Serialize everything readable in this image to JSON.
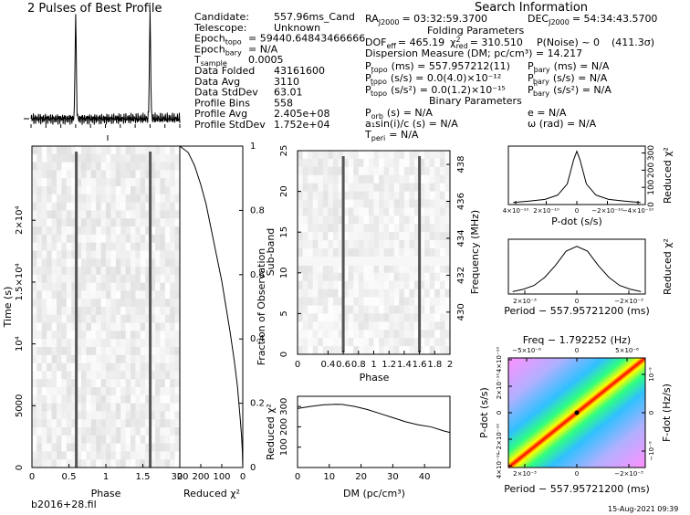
{
  "title_profile": "2 Pulses of Best Profile",
  "title_search": "Search Information",
  "filename": "b2016+28.fil",
  "timestamp": "15-Aug-2021 09:39",
  "info_left": [
    {
      "k": "Candidate:",
      "v": "557.96ms_Cand"
    },
    {
      "k": "Telescope:",
      "v": "Unknown"
    },
    {
      "k": "Epoch",
      "sub": "topo",
      "v": "= 59440.64843466666"
    },
    {
      "k": "Epoch",
      "sub": "bary",
      "v": "= N/A"
    },
    {
      "k": "T",
      "sub": "sample",
      "v": "0.0005"
    },
    {
      "k": "Data Folded",
      "v": "43161600"
    },
    {
      "k": "Data Avg",
      "v": "3110"
    },
    {
      "k": "Data StdDev",
      "v": "63.01"
    },
    {
      "k": "Profile Bins",
      "v": "558"
    },
    {
      "k": "Profile Avg",
      "v": "2.405e+08"
    },
    {
      "k": "Profile StdDev",
      "v": "1.752e+04"
    }
  ],
  "info_right": {
    "ra": "RA",
    "ra_sub": "J2000",
    "ra_val": "= 03:32:59.3700",
    "dec": "DEC",
    "dec_sub": "J2000",
    "dec_val": "= 54:34:43.5700",
    "folding_header": "Folding Parameters",
    "dof_line": "DOF",
    "dof_sub": "eff",
    "dof_val": "= 465.19",
    "chi_label": "χ",
    "chi_sup": "2",
    "chi_sub": "red",
    "chi_val": "= 310.510",
    "pnoise": "P(Noise) ~ 0",
    "sigma": "(411.3σ)",
    "dm_line": "Dispersion Measure (DM; pc/cm³) = 14.217",
    "ptopo": "P",
    "ptopo_sub": "topo",
    "ptopo_val": "(ms)    =  557.957212(11)",
    "pdot_topo_val": "(s/s)  = 0.0(4.0)×10⁻¹²",
    "pddot_topo_val": "(s/s²) = 0.0(1.2)×10⁻¹⁵",
    "pbary_line": "P",
    "pbary_val": "(ms) = N/A",
    "pdot_bary_val": "(s/s) = N/A",
    "pddot_bary_val": "(s/s²) = N/A",
    "binary_header": "Binary Parameters",
    "porb": "(s) = N/A",
    "a1sini": "a₁sin(i)/c (s) = N/A",
    "tperi": "= N/A",
    "e_val": "e = N/A",
    "omega_val": "ω (rad) = N/A"
  },
  "colors": {
    "line": "#000000",
    "heat_high": "#ff0000",
    "heat_low": "#ff80ff"
  },
  "chart_data": [
    {
      "type": "line",
      "name": "profile",
      "title": "2 Pulses of Best Profile",
      "x": [
        0,
        0.2,
        0.4,
        0.55,
        0.6,
        0.65,
        0.8,
        1.0,
        1.2,
        1.4,
        1.55,
        1.6,
        1.65,
        1.8,
        2.0
      ],
      "y": [
        0.0,
        0.01,
        0.02,
        0.1,
        1.0,
        0.1,
        0.02,
        0.0,
        0.01,
        0.02,
        0.1,
        1.0,
        0.1,
        0.02,
        0.0
      ]
    },
    {
      "type": "heatmap",
      "name": "time-phase",
      "xlabel": "Phase",
      "ylabel": "Time (s)",
      "x_ticks": [
        "0",
        "0.5",
        "1",
        "1.5",
        "2"
      ],
      "y_ticks": [
        "0",
        "5000",
        "10⁴",
        "1.5×10⁴",
        "2×10⁴"
      ],
      "xlim": [
        0,
        2
      ],
      "ylim": [
        0,
        26000
      ],
      "pulse_phases": [
        0.6,
        1.6
      ]
    },
    {
      "type": "line",
      "name": "chi-vs-time",
      "xlabel": "Reduced χ²",
      "ylabel": "Fraction of Observation",
      "x_ticks": [
        "300",
        "200",
        "100",
        "0"
      ],
      "y_ticks": [
        "0",
        "0.2",
        "0.4",
        "0.6",
        "0.8",
        "1"
      ],
      "xlim": [
        300,
        0
      ],
      "ylim": [
        0,
        1
      ],
      "x": [
        0,
        2,
        6,
        12,
        25,
        40,
        60,
        80,
        100,
        125,
        150,
        175,
        200,
        230,
        260,
        300
      ],
      "y": [
        0,
        0.05,
        0.1,
        0.15,
        0.25,
        0.33,
        0.42,
        0.5,
        0.58,
        0.66,
        0.74,
        0.82,
        0.88,
        0.94,
        0.98,
        1.0
      ]
    },
    {
      "type": "heatmap",
      "name": "subband-phase",
      "xlabel": "Phase",
      "ylabel": "Sub-band",
      "ylabel2": "Frequency (MHz)",
      "x_ticks": [
        "0",
        "0.4",
        "0.6",
        "0.8",
        "1",
        "1.2",
        "1.4",
        "1.6",
        "1.8",
        "2"
      ],
      "y_ticks": [
        "0",
        "5",
        "10",
        "15",
        "20",
        "25"
      ],
      "y2_ticks": [
        "430",
        "432",
        "434",
        "436",
        "438"
      ],
      "xlim": [
        0,
        2
      ],
      "ylim": [
        0,
        25
      ],
      "pulse_phases": [
        0.6,
        1.6
      ]
    },
    {
      "type": "line",
      "name": "chi-vs-dm",
      "xlabel": "DM (pc/cm³)",
      "ylabel": "Reduced χ²",
      "x_ticks": [
        "0",
        "10",
        "20",
        "30",
        "40"
      ],
      "y_ticks": [
        "100",
        "200",
        "300"
      ],
      "xlim": [
        0,
        48
      ],
      "ylim": [
        0,
        350
      ],
      "x": [
        0,
        4,
        8,
        12,
        14,
        18,
        22,
        26,
        30,
        34,
        38,
        42,
        46,
        48
      ],
      "y": [
        290,
        300,
        308,
        311,
        310,
        300,
        285,
        265,
        245,
        225,
        210,
        200,
        180,
        172
      ]
    },
    {
      "type": "line",
      "name": "chi-vs-pdot",
      "xlabel": "P-dot (s/s)",
      "ylabel": "Reduced χ²",
      "x_ticks": [
        "4×10⁻¹⁰",
        "2×10⁻¹⁰",
        "0",
        "−2×10⁻¹⁰",
        "−4×10⁻¹⁰"
      ],
      "y_ticks": [
        "0",
        "100",
        "200",
        "300"
      ],
      "x": [
        -4,
        -3,
        -2,
        -1.2,
        -0.6,
        -0.2,
        0,
        0.2,
        0.6,
        1.2,
        2,
        3,
        4
      ],
      "y": [
        12,
        20,
        30,
        55,
        120,
        260,
        310,
        260,
        120,
        55,
        30,
        20,
        12
      ]
    },
    {
      "type": "line",
      "name": "chi-vs-period",
      "xlabel": "Period − 557.95721200 (ms)",
      "ylabel": "Reduced χ²",
      "x_ticks": [
        "2×10⁻³",
        "0",
        "−2×10⁻³"
      ],
      "x": [
        -3,
        -2.5,
        -2,
        -1.5,
        -1,
        -0.5,
        0,
        0.5,
        1,
        1.5,
        2,
        2.5,
        3
      ],
      "y": [
        0.05,
        0.1,
        0.18,
        0.35,
        0.6,
        0.9,
        1.0,
        0.9,
        0.6,
        0.35,
        0.18,
        0.1,
        0.05
      ]
    },
    {
      "type": "heatmap",
      "name": "ppdot",
      "xlabel": "Period − 557.95721200 (ms)",
      "ylabel": "P-dot (s/s)",
      "top_label": "Freq − 1.792252 (Hz)",
      "right_label": "F-dot (Hz/s)",
      "x_ticks": [
        "2×10⁻³",
        "0",
        "−2×10⁻³"
      ],
      "top_ticks": [
        "−5×10⁻⁶",
        "0",
        "5×10⁻⁶"
      ],
      "y_ticks": [
        "4×10⁻¹⁰",
        "−2×10⁻¹⁰",
        "0",
        "2×10⁻¹⁰",
        "4×10⁻¹⁰"
      ],
      "right_ticks": [
        "10⁻⁹",
        "0",
        "−10⁻⁹"
      ]
    }
  ]
}
